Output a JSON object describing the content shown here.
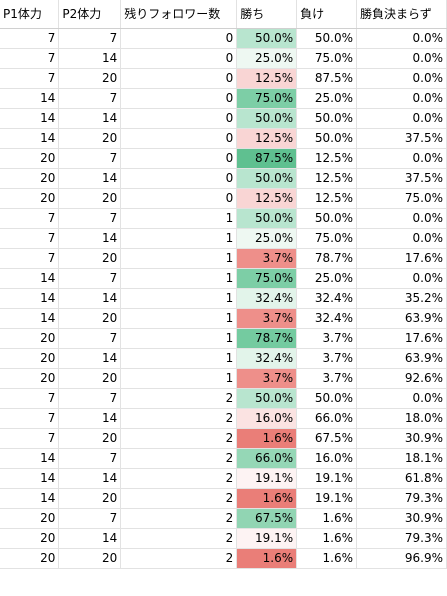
{
  "headers": [
    "P1体力",
    "P2体力",
    "残りフォロワー数",
    "勝ち",
    "負け",
    "勝負決まらず"
  ],
  "rows": [
    {
      "p1": "7",
      "p2": "7",
      "followers": "0",
      "win": "50.0%",
      "win_bg": "#b8e5cf",
      "lose": "50.0%",
      "draw": "0.0%"
    },
    {
      "p1": "7",
      "p2": "14",
      "followers": "0",
      "win": "25.0%",
      "win_bg": "#eef8f2",
      "lose": "75.0%",
      "draw": "0.0%"
    },
    {
      "p1": "7",
      "p2": "20",
      "followers": "0",
      "win": "12.5%",
      "win_bg": "#f9d5d4",
      "lose": "87.5%",
      "draw": "0.0%"
    },
    {
      "p1": "14",
      "p2": "7",
      "followers": "0",
      "win": "75.0%",
      "win_bg": "#7dcea6",
      "lose": "25.0%",
      "draw": "0.0%"
    },
    {
      "p1": "14",
      "p2": "14",
      "followers": "0",
      "win": "50.0%",
      "win_bg": "#b8e5cf",
      "lose": "50.0%",
      "draw": "0.0%"
    },
    {
      "p1": "14",
      "p2": "20",
      "followers": "0",
      "win": "12.5%",
      "win_bg": "#f9d5d4",
      "lose": "50.0%",
      "draw": "37.5%"
    },
    {
      "p1": "20",
      "p2": "7",
      "followers": "0",
      "win": "87.5%",
      "win_bg": "#5fc090",
      "lose": "12.5%",
      "draw": "0.0%"
    },
    {
      "p1": "20",
      "p2": "14",
      "followers": "0",
      "win": "50.0%",
      "win_bg": "#b8e5cf",
      "lose": "12.5%",
      "draw": "37.5%"
    },
    {
      "p1": "20",
      "p2": "20",
      "followers": "0",
      "win": "12.5%",
      "win_bg": "#f9d5d4",
      "lose": "12.5%",
      "draw": "75.0%"
    },
    {
      "p1": "7",
      "p2": "7",
      "followers": "1",
      "win": "50.0%",
      "win_bg": "#b8e5cf",
      "lose": "50.0%",
      "draw": "0.0%"
    },
    {
      "p1": "7",
      "p2": "14",
      "followers": "1",
      "win": "25.0%",
      "win_bg": "#eef8f2",
      "lose": "75.0%",
      "draw": "0.0%"
    },
    {
      "p1": "7",
      "p2": "20",
      "followers": "1",
      "win": "3.7%",
      "win_bg": "#ee8f8a",
      "lose": "78.7%",
      "draw": "17.6%"
    },
    {
      "p1": "14",
      "p2": "7",
      "followers": "1",
      "win": "75.0%",
      "win_bg": "#7dcea6",
      "lose": "25.0%",
      "draw": "0.0%"
    },
    {
      "p1": "14",
      "p2": "14",
      "followers": "1",
      "win": "32.4%",
      "win_bg": "#e2f4ea",
      "lose": "32.4%",
      "draw": "35.2%"
    },
    {
      "p1": "14",
      "p2": "20",
      "followers": "1",
      "win": "3.7%",
      "win_bg": "#ee8f8a",
      "lose": "32.4%",
      "draw": "63.9%"
    },
    {
      "p1": "20",
      "p2": "7",
      "followers": "1",
      "win": "78.7%",
      "win_bg": "#74cba0",
      "lose": "3.7%",
      "draw": "17.6%"
    },
    {
      "p1": "20",
      "p2": "14",
      "followers": "1",
      "win": "32.4%",
      "win_bg": "#e2f4ea",
      "lose": "3.7%",
      "draw": "63.9%"
    },
    {
      "p1": "20",
      "p2": "20",
      "followers": "1",
      "win": "3.7%",
      "win_bg": "#ee8f8a",
      "lose": "3.7%",
      "draw": "92.6%"
    },
    {
      "p1": "7",
      "p2": "7",
      "followers": "2",
      "win": "50.0%",
      "win_bg": "#b8e5cf",
      "lose": "50.0%",
      "draw": "0.0%"
    },
    {
      "p1": "7",
      "p2": "14",
      "followers": "2",
      "win": "16.0%",
      "win_bg": "#fbe3e2",
      "lose": "66.0%",
      "draw": "18.0%"
    },
    {
      "p1": "7",
      "p2": "20",
      "followers": "2",
      "win": "1.6%",
      "win_bg": "#ea7e78",
      "lose": "67.5%",
      "draw": "30.9%"
    },
    {
      "p1": "14",
      "p2": "7",
      "followers": "2",
      "win": "66.0%",
      "win_bg": "#95d7b6",
      "lose": "16.0%",
      "draw": "18.1%"
    },
    {
      "p1": "14",
      "p2": "14",
      "followers": "2",
      "win": "19.1%",
      "win_bg": "#fdf3f3",
      "lose": "19.1%",
      "draw": "61.8%"
    },
    {
      "p1": "14",
      "p2": "20",
      "followers": "2",
      "win": "1.6%",
      "win_bg": "#ea7e78",
      "lose": "19.1%",
      "draw": "79.3%"
    },
    {
      "p1": "20",
      "p2": "7",
      "followers": "2",
      "win": "67.5%",
      "win_bg": "#91d5b3",
      "lose": "1.6%",
      "draw": "30.9%"
    },
    {
      "p1": "20",
      "p2": "14",
      "followers": "2",
      "win": "19.1%",
      "win_bg": "#fdf3f3",
      "lose": "1.6%",
      "draw": "79.3%"
    },
    {
      "p1": "20",
      "p2": "20",
      "followers": "2",
      "win": "1.6%",
      "win_bg": "#ea7e78",
      "lose": "1.6%",
      "draw": "96.9%"
    }
  ]
}
